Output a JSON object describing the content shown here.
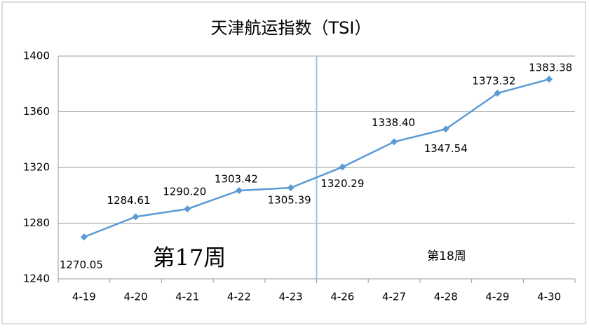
{
  "chart_data": {
    "type": "line",
    "title": "天津航运指数（TSI）",
    "categories": [
      "4-19",
      "4-20",
      "4-21",
      "4-22",
      "4-23",
      "4-26",
      "4-27",
      "4-28",
      "4-29",
      "4-30"
    ],
    "values": [
      1270.05,
      1284.61,
      1290.2,
      1303.42,
      1305.39,
      1320.29,
      1338.4,
      1347.54,
      1373.32,
      1383.38
    ],
    "value_labels": [
      "1270.05",
      "1284.61",
      "1290.20",
      "1303.42",
      "1305.39",
      "1320.29",
      "1338.40",
      "1347.54",
      "1373.32",
      "1383.38"
    ],
    "color": "#5b9bd5",
    "ylim": [
      1240,
      1400
    ],
    "yticks": [
      1240,
      1280,
      1320,
      1360,
      1400
    ],
    "grid": true,
    "annotations": [
      "第17周",
      "第18周"
    ]
  }
}
